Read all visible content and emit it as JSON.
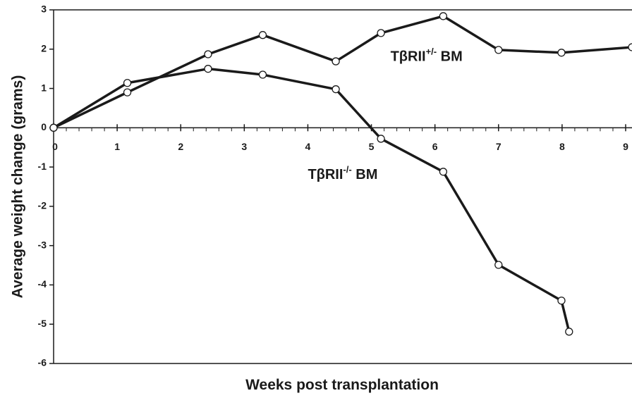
{
  "chart_data": {
    "type": "line",
    "x_label": "Weeks post transplantation",
    "y_label": "Average weight change (grams)",
    "xlim": [
      0,
      9.1
    ],
    "ylim": [
      -6,
      3
    ],
    "xticks": [
      0,
      1,
      2,
      3,
      4,
      5,
      6,
      7,
      8,
      9
    ],
    "yticks": [
      -6,
      -5,
      -4,
      -3,
      -2,
      -1,
      0,
      1,
      2,
      3
    ],
    "series": [
      {
        "name": "TβRII+/- BM",
        "color": "#1a1a1a",
        "x": [
          0,
          1.16,
          2.43,
          3.29,
          4.44,
          5.15,
          6.13,
          7.0,
          7.99,
          9.1
        ],
        "values": [
          0,
          0.9,
          1.87,
          2.36,
          1.69,
          2.41,
          2.84,
          1.98,
          1.91,
          2.05
        ]
      },
      {
        "name": "TβRII-/- BM",
        "color": "#1a1a1a",
        "x": [
          0,
          1.16,
          2.43,
          3.29,
          4.44,
          5.15,
          6.13,
          7.0,
          7.99,
          8.11
        ],
        "values": [
          0,
          1.14,
          1.5,
          1.35,
          0.98,
          -0.28,
          -1.12,
          -3.49,
          -4.4,
          -5.19
        ]
      }
    ],
    "annotations": [
      {
        "text": "TβRII",
        "sup": "+/-",
        "after": " BM",
        "x": 5.3,
        "y": 1.7
      },
      {
        "text": "TβRII",
        "sup": "-/-",
        "after": " BM",
        "x": 4.0,
        "y": -1.3
      }
    ]
  }
}
